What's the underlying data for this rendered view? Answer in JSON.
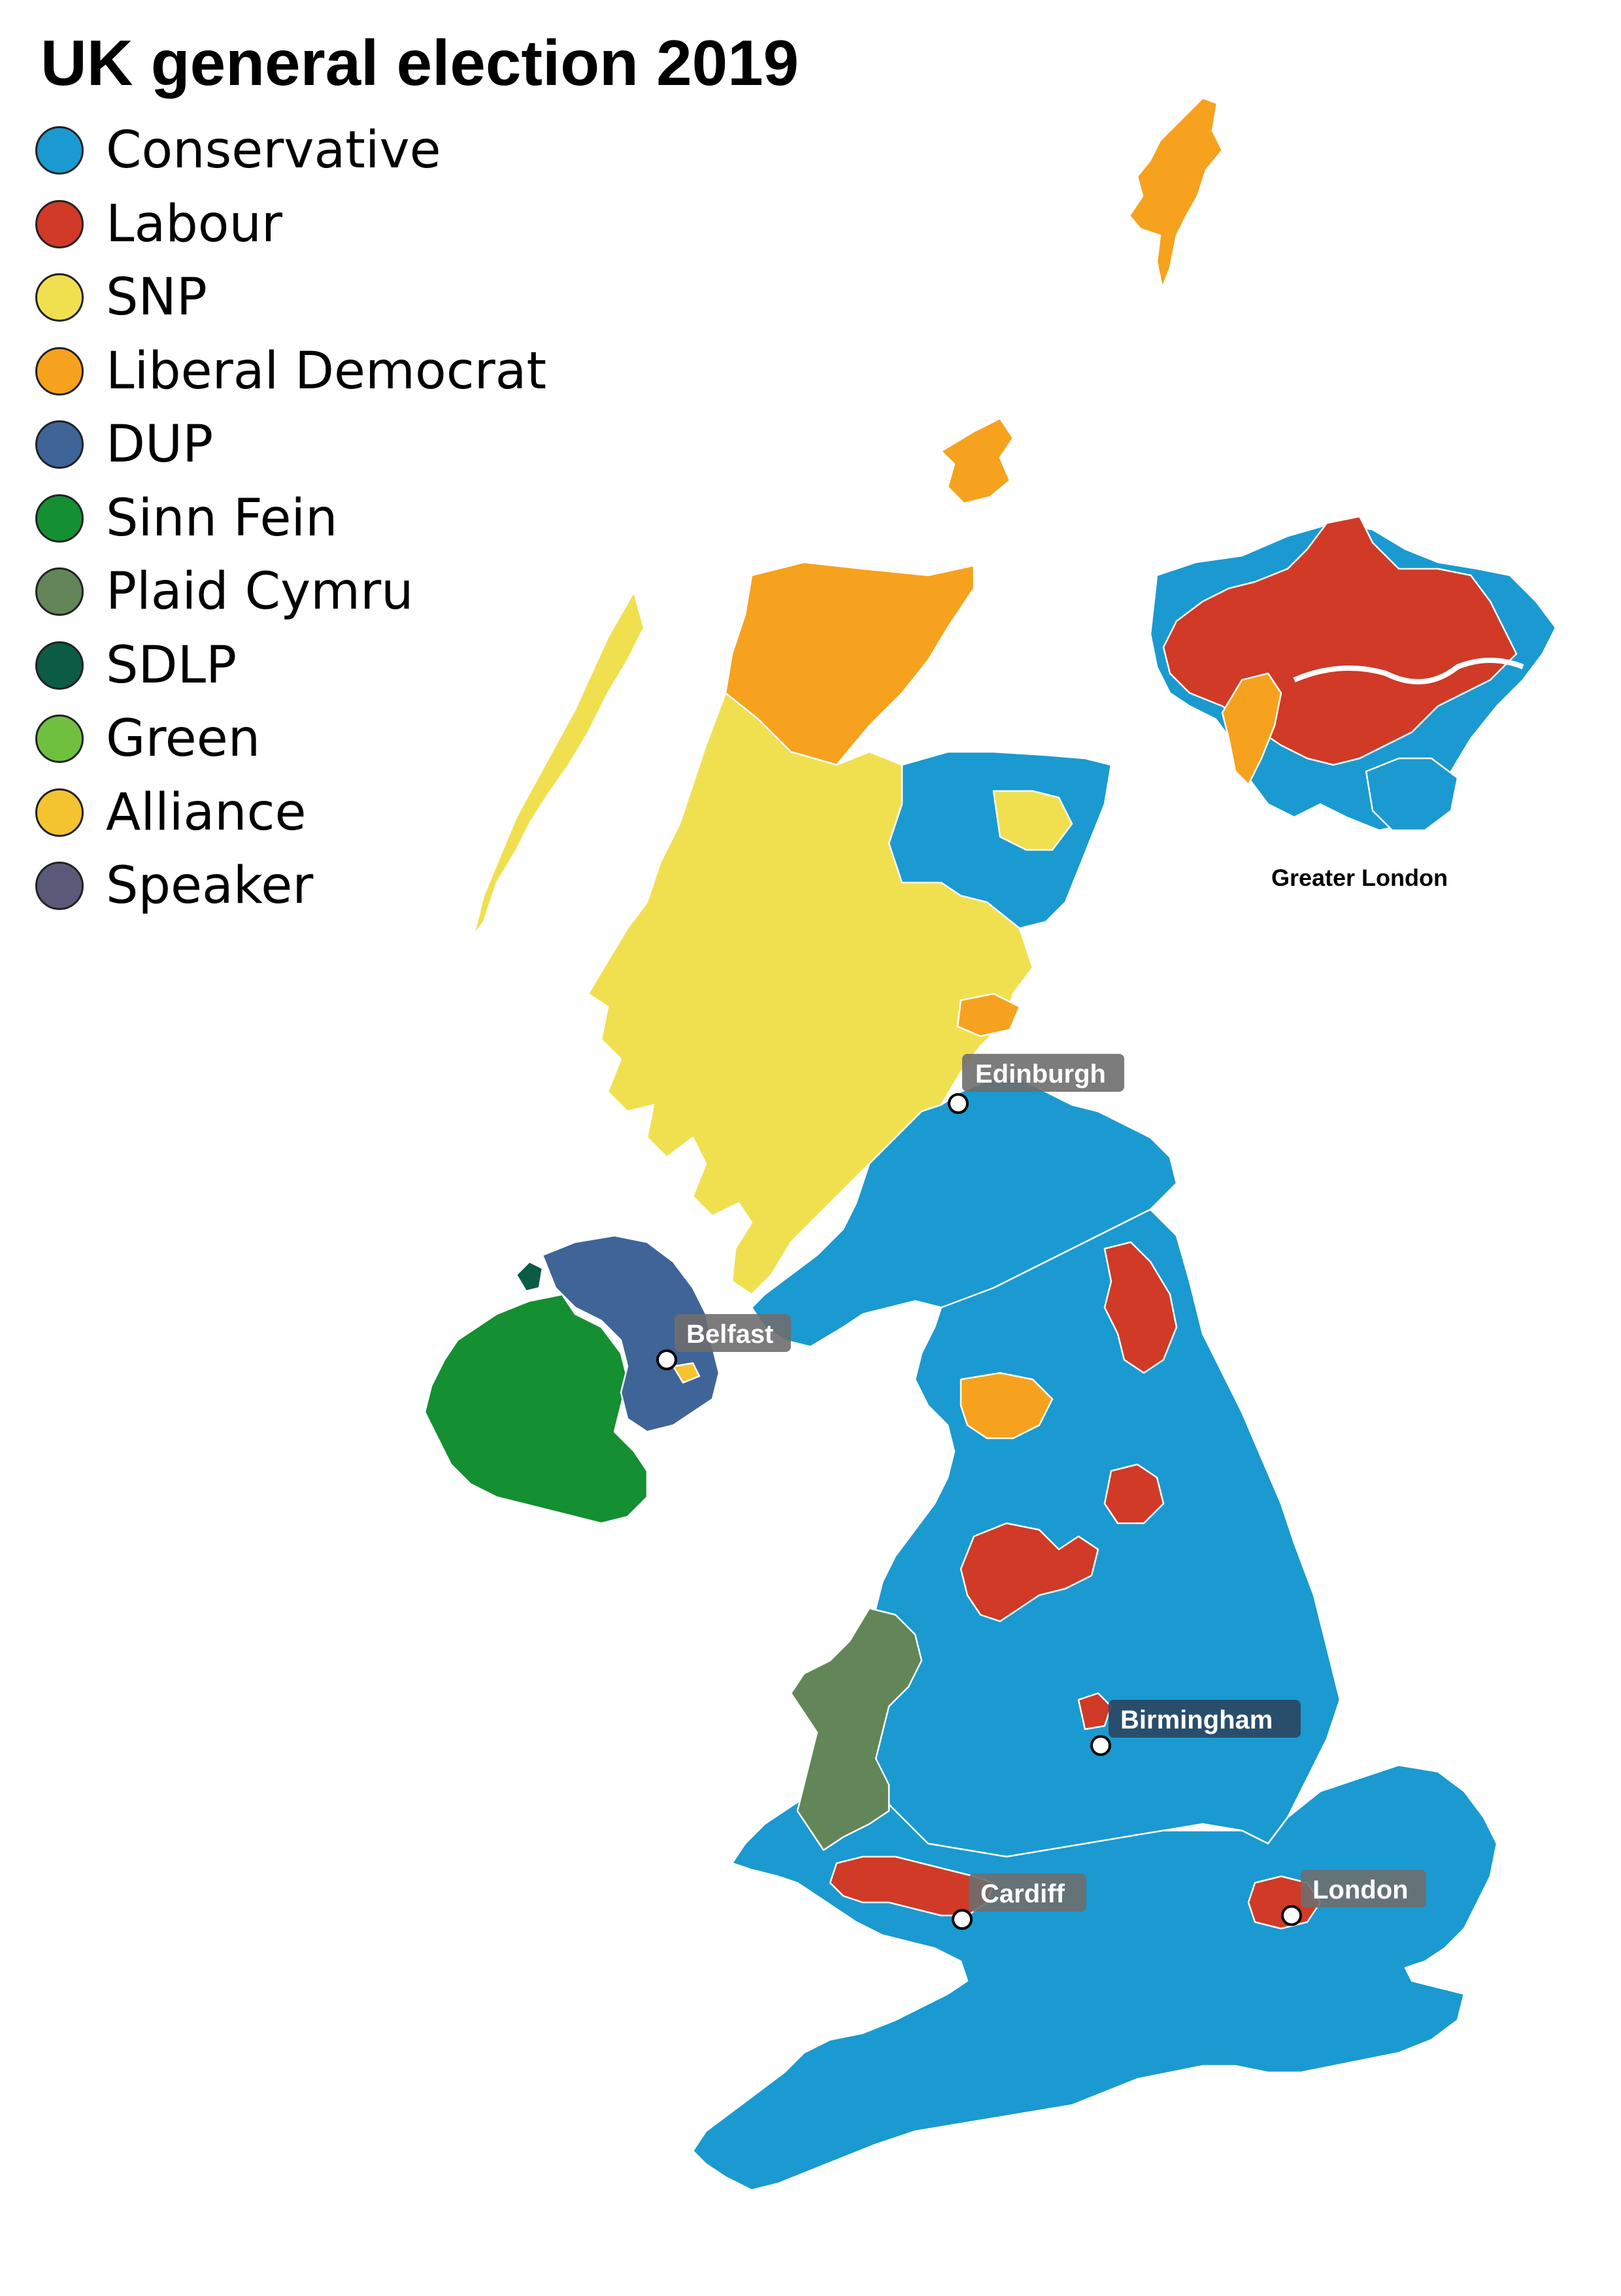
{
  "title": "UK general election 2019",
  "legend": [
    {
      "label": "Conservative",
      "color": "#1a9ad0"
    },
    {
      "label": "Labour",
      "color": "#d03a27"
    },
    {
      "label": "SNP",
      "color": "#f0e050"
    },
    {
      "label": "Liberal Democrat",
      "color": "#f6a21e"
    },
    {
      "label": "DUP",
      "color": "#3f6498"
    },
    {
      "label": "Sinn Fein",
      "color": "#148f32"
    },
    {
      "label": "Plaid Cymru",
      "color": "#628658"
    },
    {
      "label": "SDLP",
      "color": "#0b5b45"
    },
    {
      "label": "Green",
      "color": "#70c040"
    },
    {
      "label": "Alliance",
      "color": "#f4c330"
    },
    {
      "label": "Speaker",
      "color": "#5a5a78"
    }
  ],
  "cities": [
    {
      "name": "Edinburgh"
    },
    {
      "name": "Belfast"
    },
    {
      "name": "Birmingham"
    },
    {
      "name": "Cardiff"
    },
    {
      "name": "London"
    }
  ],
  "inset": {
    "label": "Greater London"
  },
  "colors": {
    "label_box": "#6e6e6e",
    "label_box_dark": "#2a4660",
    "border": "#ffffff"
  }
}
